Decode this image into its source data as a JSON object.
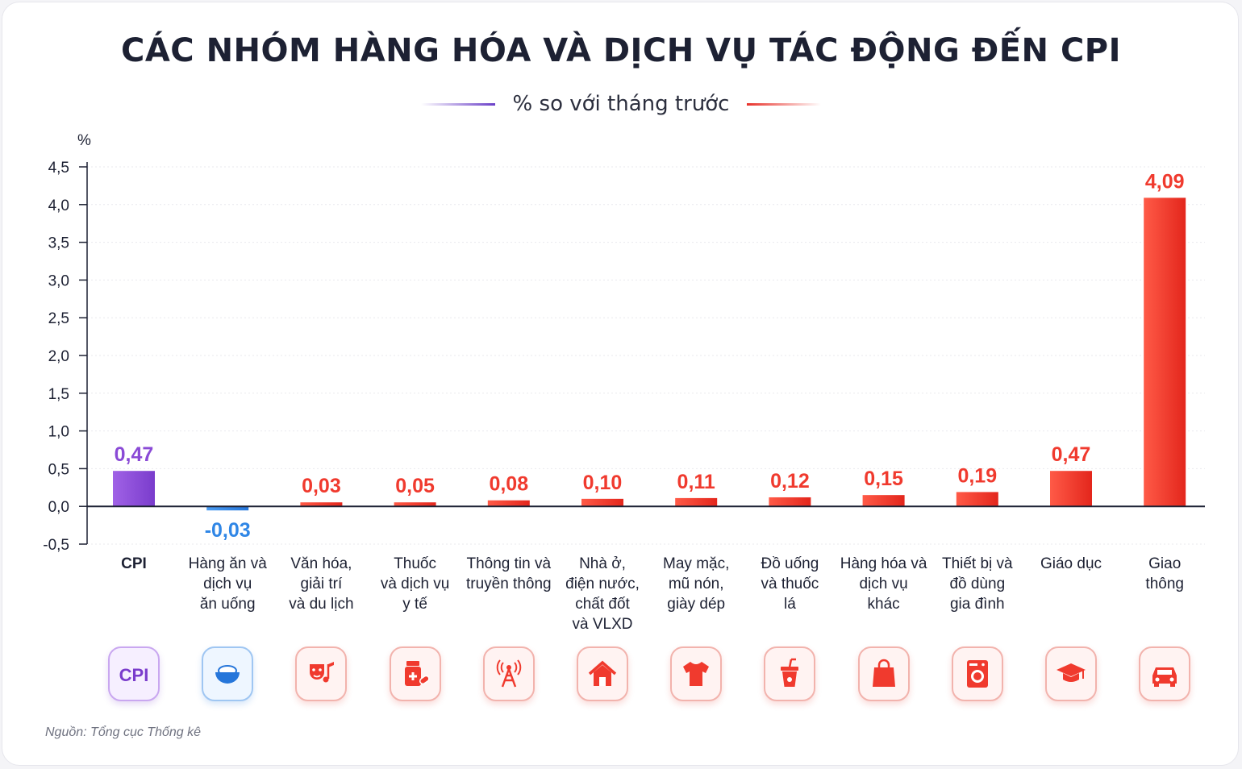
{
  "title": "CÁC NHÓM HÀNG HÓA VÀ DỊCH VỤ TÁC ĐỘNG ĐẾN CPI",
  "subtitle": "% so với tháng trước",
  "source": "Nguồn: Tổng cục Thống kê",
  "colors": {
    "cpi": "#8a4ad6",
    "negative": "#2f86e6",
    "positive": "#f03a2e",
    "axis": "#1d2133"
  },
  "chart_data": {
    "type": "bar",
    "ylabel": "%",
    "ylim": [
      -0.5,
      4.5
    ],
    "yticks": [
      "4,5",
      "4,0",
      "3,5",
      "3,0",
      "2,5",
      "2,0",
      "1,5",
      "1,0",
      "0,5",
      "0,0",
      "-0,5"
    ],
    "ytick_values": [
      4.5,
      4.0,
      3.5,
      3.0,
      2.5,
      2.0,
      1.5,
      1.0,
      0.5,
      0.0,
      -0.5
    ],
    "grid": true,
    "categories": [
      [
        "CPI"
      ],
      [
        "Hàng ăn và",
        "dịch vụ",
        "ăn uống"
      ],
      [
        "Văn hóa,",
        "giải trí",
        "và du lịch"
      ],
      [
        "Thuốc",
        "và dịch vụ",
        "y tế"
      ],
      [
        "Thông tin và",
        "truyền thông"
      ],
      [
        "Nhà ở,",
        "điện nước,",
        "chất đốt",
        "và VLXD"
      ],
      [
        "May mặc,",
        "mũ nón,",
        "giày dép"
      ],
      [
        "Đồ uống",
        "và thuốc",
        "lá"
      ],
      [
        "Hàng hóa và",
        "dịch vụ",
        "khác"
      ],
      [
        "Thiết bị và",
        "đồ dùng",
        "gia đình"
      ],
      [
        "Giáo dục"
      ],
      [
        "Giao",
        "thông"
      ]
    ],
    "values": [
      0.47,
      -0.03,
      0.03,
      0.05,
      0.08,
      0.1,
      0.11,
      0.12,
      0.15,
      0.19,
      0.47,
      4.09
    ],
    "value_labels": [
      "0,47",
      "-0,03",
      "0,03",
      "0,05",
      "0,08",
      "0,10",
      "0,11",
      "0,12",
      "0,15",
      "0,19",
      "0,47",
      "4,09"
    ],
    "icons": [
      "cpi-icon",
      "rice-bowl-icon",
      "theater-music-icon",
      "medicine-icon",
      "broadcast-tower-icon",
      "house-icon",
      "tshirt-icon",
      "drink-cup-icon",
      "shopping-bag-icon",
      "washing-machine-icon",
      "graduation-cap-icon",
      "car-icon"
    ]
  }
}
